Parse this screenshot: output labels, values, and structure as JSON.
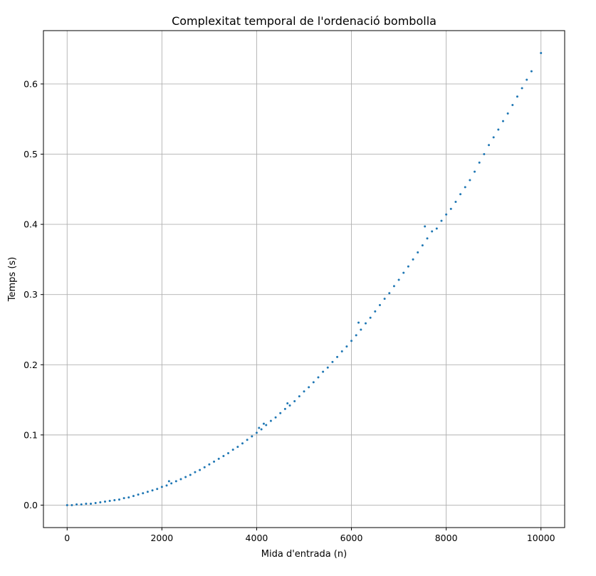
{
  "chart_data": {
    "type": "scatter",
    "title": "Complexitat temporal de l'ordenació bombolla",
    "xlabel": "Mida d'entrada (n)",
    "ylabel": "Temps (s)",
    "xlim": [
      -500,
      10500
    ],
    "ylim": [
      -0.032,
      0.676
    ],
    "xticks": [
      0,
      2000,
      4000,
      6000,
      8000,
      10000
    ],
    "xtick_labels": [
      "0",
      "2000",
      "4000",
      "6000",
      "8000",
      "10000"
    ],
    "yticks": [
      0.0,
      0.1,
      0.2,
      0.3,
      0.4,
      0.5,
      0.6
    ],
    "ytick_labels": [
      "0.0",
      "0.1",
      "0.2",
      "0.3",
      "0.4",
      "0.5",
      "0.6"
    ],
    "grid": true,
    "marker_color": "#1f77b4",
    "series": [
      {
        "x": [
          0,
          100,
          200,
          300,
          400,
          500,
          600,
          700,
          800,
          900,
          1000,
          1100,
          1200,
          1300,
          1400,
          1500,
          1600,
          1700,
          1800,
          1900,
          2000,
          2100,
          2150,
          2200,
          2300,
          2400,
          2500,
          2600,
          2700,
          2800,
          2900,
          3000,
          3100,
          3200,
          3300,
          3400,
          3500,
          3600,
          3700,
          3800,
          3900,
          4000,
          4050,
          4100,
          4150,
          4200,
          4300,
          4400,
          4500,
          4600,
          4650,
          4700,
          4800,
          4900,
          5000,
          5100,
          5200,
          5300,
          5400,
          5500,
          5600,
          5700,
          5800,
          5900,
          6000,
          6100,
          6150,
          6200,
          6300,
          6400,
          6500,
          6600,
          6700,
          6800,
          6900,
          7000,
          7100,
          7200,
          7300,
          7400,
          7500,
          7550,
          7600,
          7700,
          7800,
          7900,
          8000,
          8100,
          8200,
          8300,
          8400,
          8500,
          8600,
          8700,
          8800,
          8900,
          9000,
          9100,
          9200,
          9300,
          9400,
          9500,
          9600,
          9700,
          9800,
          10000
        ],
        "y": [
          0.0,
          0.0,
          0.001,
          0.001,
          0.002,
          0.002,
          0.003,
          0.004,
          0.005,
          0.006,
          0.007,
          0.008,
          0.01,
          0.011,
          0.013,
          0.015,
          0.017,
          0.019,
          0.021,
          0.023,
          0.026,
          0.028,
          0.034,
          0.031,
          0.034,
          0.037,
          0.04,
          0.043,
          0.047,
          0.05,
          0.054,
          0.058,
          0.062,
          0.066,
          0.07,
          0.074,
          0.079,
          0.083,
          0.088,
          0.093,
          0.098,
          0.103,
          0.11,
          0.108,
          0.116,
          0.114,
          0.12,
          0.125,
          0.131,
          0.137,
          0.145,
          0.142,
          0.148,
          0.155,
          0.162,
          0.168,
          0.175,
          0.182,
          0.19,
          0.196,
          0.204,
          0.211,
          0.219,
          0.226,
          0.234,
          0.242,
          0.26,
          0.25,
          0.259,
          0.267,
          0.276,
          0.285,
          0.294,
          0.302,
          0.312,
          0.321,
          0.331,
          0.34,
          0.35,
          0.36,
          0.37,
          0.397,
          0.38,
          0.39,
          0.394,
          0.405,
          0.414,
          0.422,
          0.432,
          0.443,
          0.453,
          0.463,
          0.475,
          0.488,
          0.5,
          0.513,
          0.524,
          0.535,
          0.547,
          0.558,
          0.57,
          0.582,
          0.594,
          0.606,
          0.618,
          0.644
        ]
      }
    ]
  }
}
